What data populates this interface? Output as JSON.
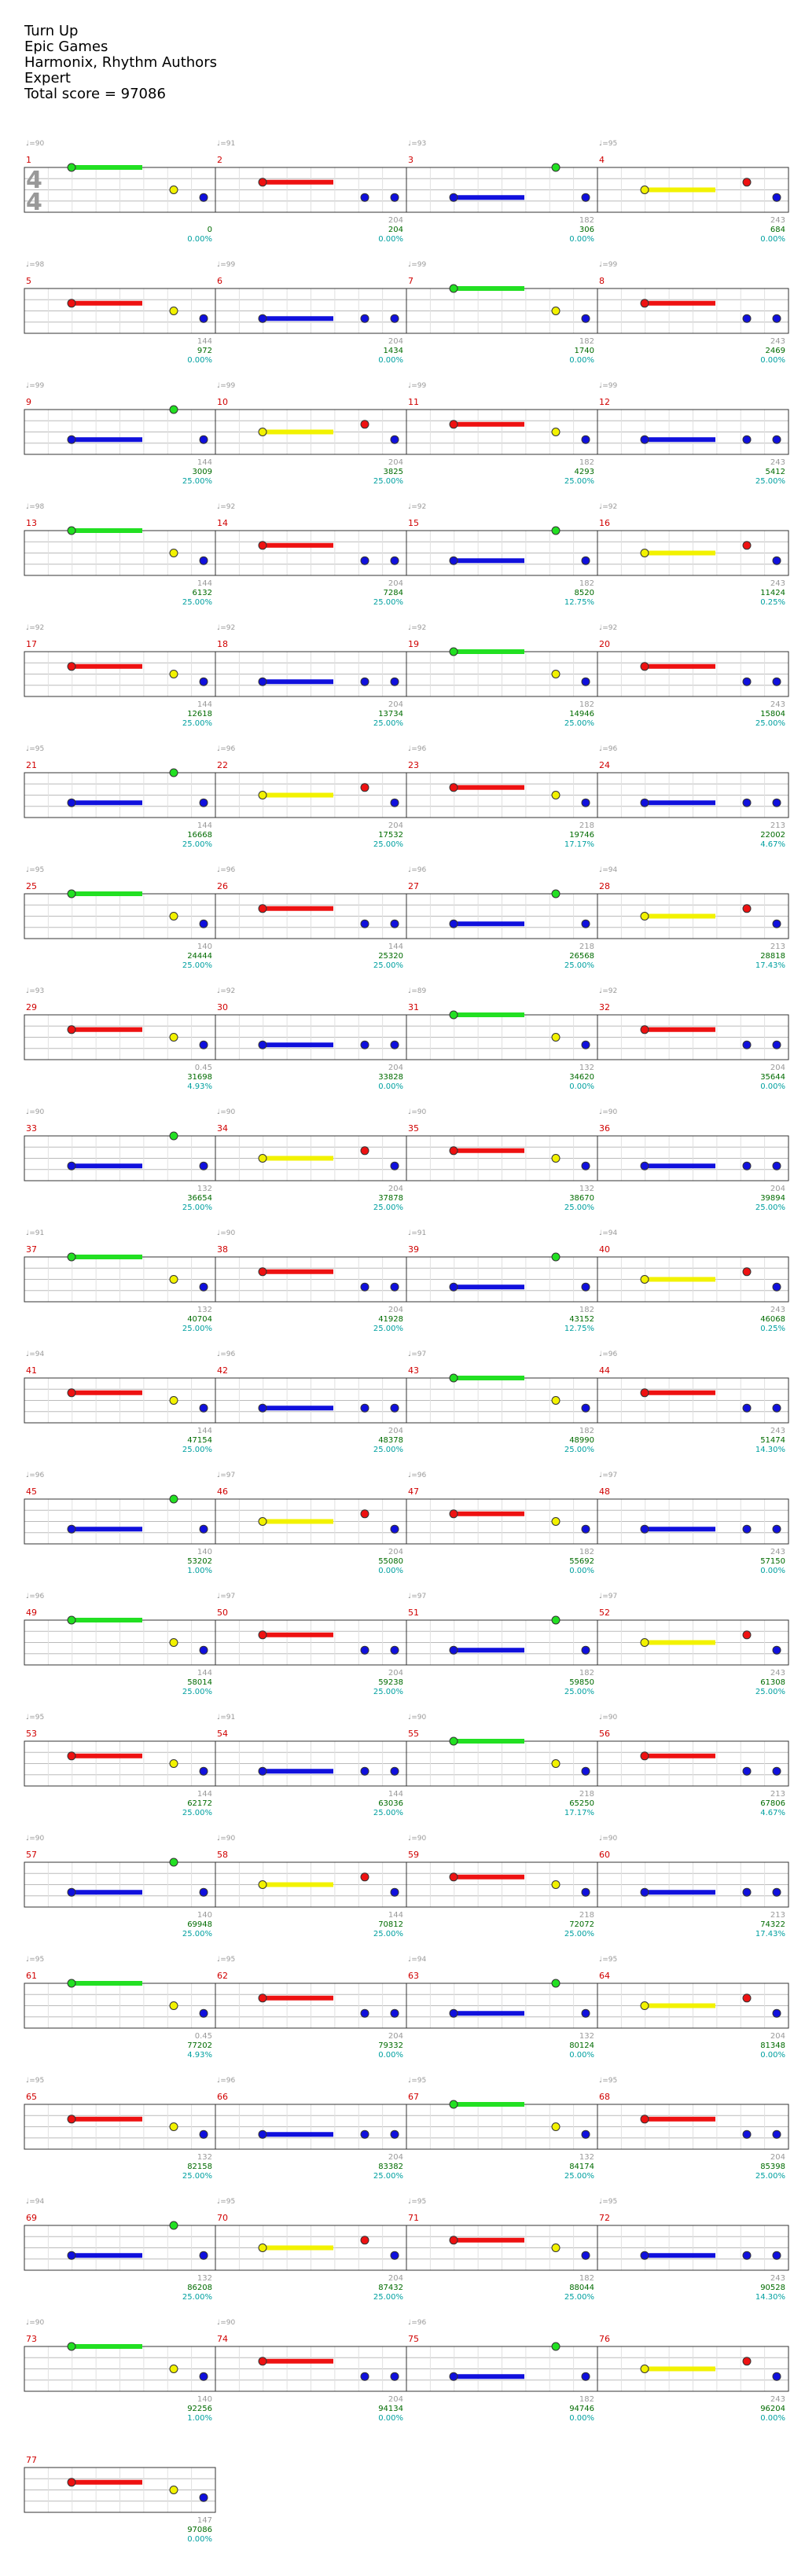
{
  "song": {
    "title": "Turn Up",
    "artist": "Epic Games",
    "charter": "Harmonix, Rhythm Authors",
    "difficulty": "Expert",
    "total_score": "Total score = 97086"
  },
  "time_signature": {
    "top": "4",
    "bottom": "4"
  },
  "colors": {
    "green": "#22e022",
    "red": "#ee1111",
    "yellow": "#f2f200",
    "blue": "#1010dd",
    "orange": "#ff9c1a",
    "starpower": "#22e022",
    "solo": "#2020cc",
    "measure_red": "#d00000"
  },
  "tempo_labels": [
    "♩=90",
    "♩=91",
    "♩=93",
    "♩=95",
    "♩=98",
    "♩=99",
    "♩=99",
    "♩=99",
    "♩=99",
    "♩=99",
    "♩=99",
    "♩=99",
    "♩=98",
    "♩=92",
    "♩=92",
    "♩=92",
    "♩=92",
    "♩=92",
    "♩=92",
    "♩=92",
    "♩=95",
    "♩=96",
    "♩=96",
    "♩=96",
    "♩=95",
    "♩=96",
    "♩=96",
    "♩=94",
    "♩=93",
    "♩=92",
    "♩=89",
    "♩=92",
    "♩=90",
    "♩=90",
    "♩=90",
    "♩=90",
    "♩=91",
    "♩=90",
    "♩=91",
    "♩=94",
    "♩=94",
    "♩=96",
    "♩=97",
    "♩=96",
    "♩=96",
    "♩=97",
    "♩=96",
    "♩=97",
    "♩=96",
    "♩=97",
    "♩=97",
    "♩=97",
    "♩=95",
    "♩=91",
    "♩=90",
    "♩=90",
    "♩=90",
    "♩=90",
    "♩=90",
    "♩=90",
    "♩=95",
    "♩=95",
    "♩=94",
    "♩=95",
    "♩=95",
    "♩=96",
    "♩=95",
    "♩=95",
    "♩=94",
    "♩=95",
    "♩=95",
    "♩=95",
    "♩=90",
    "♩=90",
    "♩=96"
  ],
  "rows": [
    {
      "measures": [
        "1",
        "2",
        "3",
        "4"
      ],
      "beats": [
        "",
        "204",
        "182",
        "243"
      ],
      "scores": [
        "0",
        "204",
        "306",
        "684"
      ],
      "pcts": [
        "0.00%",
        "0.00%",
        "0.00%",
        "0.00%"
      ]
    },
    {
      "measures": [
        "5",
        "6",
        "7",
        "8"
      ],
      "beats": [
        "144",
        "204",
        "182",
        "243"
      ],
      "scores": [
        "972",
        "1434",
        "1740",
        "2469"
      ],
      "pcts": [
        "0.00%",
        "0.00%",
        "0.00%",
        "0.00%"
      ]
    },
    {
      "measures": [
        "9",
        "10",
        "11",
        "12"
      ],
      "beats": [
        "144",
        "204",
        "182",
        "243"
      ],
      "scores": [
        "3009",
        "3825",
        "4293",
        "5412"
      ],
      "pcts": [
        "25.00%",
        "25.00%",
        "25.00%",
        "25.00%"
      ]
    },
    {
      "measures": [
        "13",
        "14",
        "15",
        "16"
      ],
      "beats": [
        "144",
        "204",
        "182",
        "243"
      ],
      "scores": [
        "6132",
        "7284",
        "8520",
        "11424"
      ],
      "pcts": [
        "25.00%",
        "25.00%",
        "12.75%",
        "0.25%"
      ]
    },
    {
      "measures": [
        "17",
        "18",
        "19",
        "20"
      ],
      "beats": [
        "144",
        "204",
        "182",
        "243"
      ],
      "scores": [
        "12618",
        "13734",
        "14946",
        "15804"
      ],
      "pcts": [
        "25.00%",
        "25.00%",
        "25.00%",
        "25.00%"
      ]
    },
    {
      "measures": [
        "21",
        "22",
        "23",
        "24"
      ],
      "beats": [
        "144",
        "204",
        "218",
        "213"
      ],
      "scores": [
        "16668",
        "17532",
        "19746",
        "22002"
      ],
      "pcts": [
        "25.00%",
        "25.00%",
        "17.17%",
        "4.67%"
      ]
    },
    {
      "measures": [
        "25",
        "26",
        "27",
        "28"
      ],
      "beats": [
        "140",
        "144",
        "218",
        "213"
      ],
      "scores": [
        "24444",
        "25320",
        "26568",
        "28818"
      ],
      "pcts": [
        "25.00%",
        "25.00%",
        "25.00%",
        "17.43%"
      ]
    },
    {
      "measures": [
        "29",
        "30",
        "31",
        "32"
      ],
      "beats": [
        "0.45",
        "204",
        "132",
        "204"
      ],
      "scores": [
        "31698",
        "33828",
        "34620",
        "35644"
      ],
      "pcts": [
        "4.93%",
        "0.00%",
        "0.00%",
        "0.00%"
      ]
    },
    {
      "measures": [
        "33",
        "34",
        "35",
        "36"
      ],
      "beats": [
        "132",
        "204",
        "132",
        "204"
      ],
      "scores": [
        "36654",
        "37878",
        "38670",
        "39894"
      ],
      "pcts": [
        "25.00%",
        "25.00%",
        "25.00%",
        "25.00%"
      ]
    },
    {
      "measures": [
        "37",
        "38",
        "39",
        "40"
      ],
      "beats": [
        "132",
        "204",
        "182",
        "243"
      ],
      "scores": [
        "40704",
        "41928",
        "43152",
        "46068"
      ],
      "pcts": [
        "25.00%",
        "25.00%",
        "12.75%",
        "0.25%"
      ]
    },
    {
      "measures": [
        "41",
        "42",
        "43",
        "44"
      ],
      "beats": [
        "144",
        "204",
        "182",
        "243"
      ],
      "scores": [
        "47154",
        "48378",
        "48990",
        "51474"
      ],
      "pcts": [
        "25.00%",
        "25.00%",
        "25.00%",
        "14.30%"
      ]
    },
    {
      "measures": [
        "45",
        "46",
        "47",
        "48"
      ],
      "beats": [
        "140",
        "204",
        "182",
        "243"
      ],
      "scores": [
        "53202",
        "55080",
        "55692",
        "57150"
      ],
      "pcts": [
        "1.00%",
        "0.00%",
        "0.00%",
        "0.00%"
      ]
    },
    {
      "measures": [
        "49",
        "50",
        "51",
        "52"
      ],
      "beats": [
        "144",
        "204",
        "182",
        "243"
      ],
      "scores": [
        "58014",
        "59238",
        "59850",
        "61308"
      ],
      "pcts": [
        "25.00%",
        "25.00%",
        "25.00%",
        "25.00%"
      ]
    },
    {
      "measures": [
        "53",
        "54",
        "55",
        "56"
      ],
      "beats": [
        "144",
        "144",
        "218",
        "213"
      ],
      "scores": [
        "62172",
        "63036",
        "65250",
        "67806"
      ],
      "pcts": [
        "25.00%",
        "25.00%",
        "17.17%",
        "4.67%"
      ]
    },
    {
      "measures": [
        "57",
        "58",
        "59",
        "60"
      ],
      "beats": [
        "140",
        "144",
        "218",
        "213"
      ],
      "scores": [
        "69948",
        "70812",
        "72072",
        "74322"
      ],
      "pcts": [
        "25.00%",
        "25.00%",
        "25.00%",
        "17.43%"
      ]
    },
    {
      "measures": [
        "61",
        "62",
        "63",
        "64"
      ],
      "beats": [
        "0.45",
        "204",
        "132",
        "204"
      ],
      "scores": [
        "77202",
        "79332",
        "80124",
        "81348"
      ],
      "pcts": [
        "4.93%",
        "0.00%",
        "0.00%",
        "0.00%"
      ]
    },
    {
      "measures": [
        "65",
        "66",
        "67",
        "68"
      ],
      "beats": [
        "132",
        "204",
        "132",
        "204"
      ],
      "scores": [
        "82158",
        "83382",
        "84174",
        "85398"
      ],
      "pcts": [
        "25.00%",
        "25.00%",
        "25.00%",
        "25.00%"
      ]
    },
    {
      "measures": [
        "69",
        "70",
        "71",
        "72"
      ],
      "beats": [
        "132",
        "204",
        "182",
        "243"
      ],
      "scores": [
        "86208",
        "87432",
        "88044",
        "90528"
      ],
      "pcts": [
        "25.00%",
        "25.00%",
        "25.00%",
        "14.30%"
      ]
    },
    {
      "measures": [
        "73",
        "74",
        "75",
        "76"
      ],
      "beats": [
        "140",
        "204",
        "182",
        "243"
      ],
      "scores": [
        "92256",
        "94134",
        "94746",
        "96204"
      ],
      "pcts": [
        "1.00%",
        "0.00%",
        "0.00%",
        "0.00%"
      ]
    },
    {
      "measures": [
        "77"
      ],
      "beats": [
        "147"
      ],
      "scores": [
        "97086"
      ],
      "pcts": [
        "0.00%"
      ]
    }
  ]
}
